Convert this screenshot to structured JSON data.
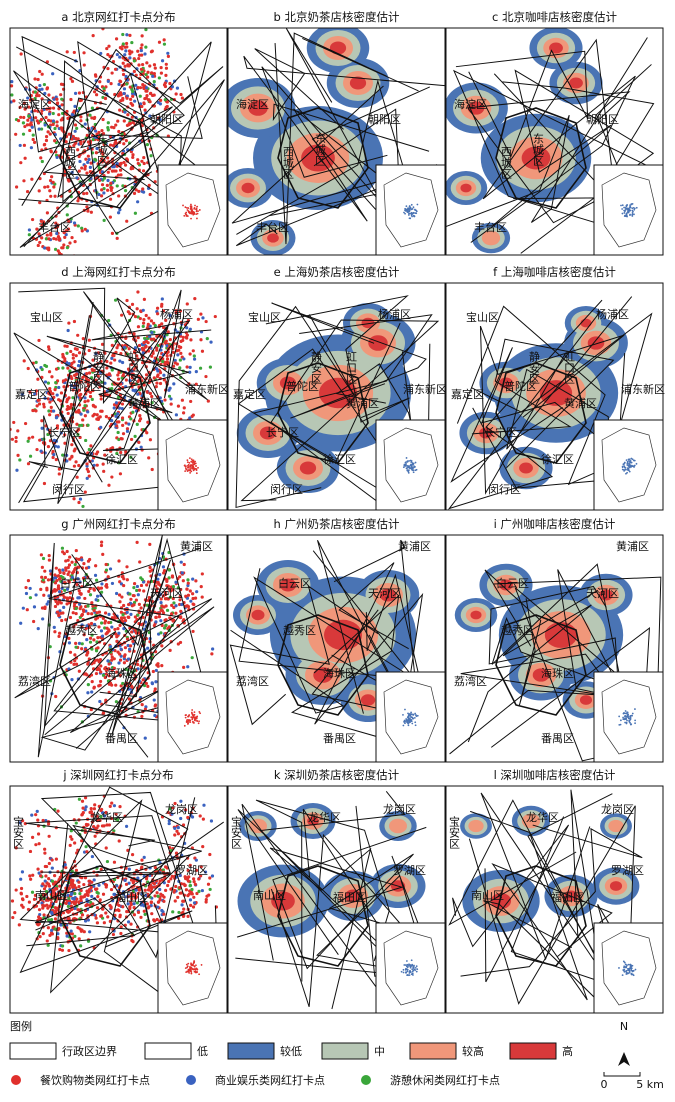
{
  "panels": [
    {
      "title": "a 北京网红打卡点分布",
      "kind": "points",
      "labels": [
        "海淀区",
        "朝阳区",
        "西城区",
        "东城区",
        "丰台区"
      ]
    },
    {
      "title": "b 北京奶茶店核密度估计",
      "kind": "density",
      "labels": [
        "海淀区",
        "朝阳区",
        "西城区",
        "东城区",
        "丰台区"
      ]
    },
    {
      "title": "c 北京咖啡店核密度估计",
      "kind": "density",
      "labels": [
        "海淀区",
        "朝阳区",
        "西城区",
        "东城区",
        "丰台区"
      ]
    },
    {
      "title": "d 上海网红打卡点分布",
      "kind": "points",
      "labels": [
        "宝山区",
        "杨浦区",
        "静安区",
        "虹口区",
        "普陀区",
        "嘉定区",
        "黄浦区",
        "浦东新区",
        "长宁区",
        "徐汇区",
        "闵行区"
      ]
    },
    {
      "title": "e 上海奶茶店核密度估计",
      "kind": "density",
      "labels": [
        "宝山区",
        "杨浦区",
        "静安区",
        "虹口区",
        "普陀区",
        "嘉定区",
        "黄浦区",
        "浦东新区",
        "长宁区",
        "徐汇区",
        "闵行区"
      ]
    },
    {
      "title": "f 上海咖啡店核密度估计",
      "kind": "density",
      "labels": [
        "宝山区",
        "杨浦区",
        "静安区",
        "虹口区",
        "普陀区",
        "嘉定区",
        "黄浦区",
        "浦东新区",
        "长宁区",
        "徐汇区",
        "闵行区"
      ]
    },
    {
      "title": "g 广州网红打卡点分布",
      "kind": "points",
      "labels": [
        "黄浦区",
        "白云区",
        "天河区",
        "越秀区",
        "海珠区",
        "荔湾区",
        "番禺区"
      ]
    },
    {
      "title": "h 广州奶茶店核密度估计",
      "kind": "density",
      "labels": [
        "黄浦区",
        "白云区",
        "天河区",
        "越秀区",
        "海珠区",
        "荔湾区",
        "番禺区"
      ]
    },
    {
      "title": "i 广州咖啡店核密度估计",
      "kind": "density",
      "labels": [
        "黄浦区",
        "白云区",
        "天河区",
        "越秀区",
        "海珠区",
        "荔湾区",
        "番禺区"
      ]
    },
    {
      "title": "j 深圳网红打卡点分布",
      "kind": "points",
      "labels": [
        "宝安区",
        "龙华区",
        "龙岗区",
        "罗湖区",
        "南山区",
        "福田区"
      ]
    },
    {
      "title": "k 深圳奶茶店核密度估计",
      "kind": "density",
      "labels": [
        "宝安区",
        "龙华区",
        "龙岗区",
        "罗湖区",
        "南山区",
        "福田区"
      ]
    },
    {
      "title": "l 深圳咖啡店核密度估计",
      "kind": "density",
      "labels": [
        "宝安区",
        "龙华区",
        "龙岗区",
        "罗湖区",
        "南山区",
        "福田区"
      ]
    }
  ],
  "legend": {
    "title": "图例",
    "areas": [
      {
        "label": "行政区边界",
        "color": "#ffffff"
      },
      {
        "label": "低",
        "color": "#ffffff"
      },
      {
        "label": "较低",
        "color": "#4a74b4"
      },
      {
        "label": "中",
        "color": "#b7c7b5"
      },
      {
        "label": "较高",
        "color": "#f0977a"
      },
      {
        "label": "高",
        "color": "#d8393a"
      }
    ],
    "points": [
      {
        "label": "餐饮购物类网红打卡点",
        "color": "#e0302c"
      },
      {
        "label": "商业娱乐类网红打卡点",
        "color": "#3a62c0"
      },
      {
        "label": "游憩休闲类网红打卡点",
        "color": "#3aa63a"
      }
    ]
  },
  "scale": {
    "north": "N",
    "zero": "0",
    "distance": "5 km"
  }
}
